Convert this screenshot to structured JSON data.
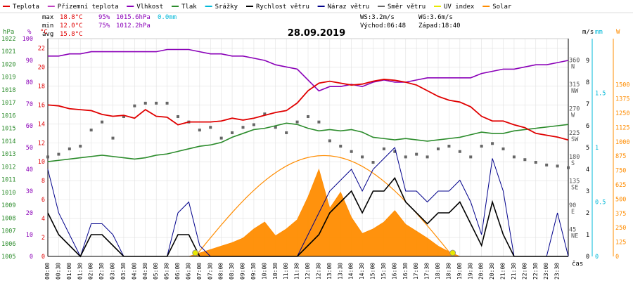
{
  "header": {
    "legend": [
      {
        "label": "Teplota",
        "color": "#e00000",
        "kind": "line"
      },
      {
        "label": "Přízemní teplota",
        "color": "#c040c0",
        "kind": "line"
      },
      {
        "label": "Vlhkost",
        "color": "#8a00b8",
        "kind": "line"
      },
      {
        "label": "Tlak",
        "color": "#2c8c2c",
        "kind": "line"
      },
      {
        "label": "Srážky",
        "color": "#00b8d8",
        "kind": "line"
      },
      {
        "label": "Rychlost větru",
        "color": "#000000",
        "kind": "line"
      },
      {
        "label": "Náraz větru",
        "color": "#00008b",
        "kind": "line"
      },
      {
        "label": "Směr větru",
        "color": "#666666",
        "kind": "line"
      },
      {
        "label": "UV index",
        "color": "#e8e800",
        "kind": "line"
      },
      {
        "label": "Solar",
        "color": "#ff8c00",
        "kind": "line"
      }
    ]
  },
  "stats": {
    "max": {
      "label": "max",
      "temp": "18.8°C",
      "hum": "95%",
      "press": "1015.6hPa",
      "rain": "0.0mm"
    },
    "min": {
      "label": "min",
      "temp": "12.0°C",
      "hum": "75%",
      "press": "1012.2hPa"
    },
    "avg": {
      "label": "avg",
      "temp": "15.8°C"
    },
    "wind": {
      "ws": "WS:3.2m/s",
      "wg": "WG:3.6m/s",
      "sunrise": "Východ:06:48",
      "sunset": "Západ:18:40"
    }
  },
  "colors": {
    "temp": "#e00000",
    "hum": "#8a00b8",
    "press": "#2c8c2c",
    "rain": "#00b8d8",
    "wind": "#000000",
    "gust": "#00008b",
    "dir": "#666666",
    "uv": "#e8e800",
    "solar": "#ff8c00",
    "grid": "#e0e0e0",
    "axis": "#000000"
  },
  "chart_data": {
    "type": "line",
    "title": "28.09.2019",
    "xlabel": "čas",
    "x_ticks": [
      "00:00",
      "00:30",
      "01:00",
      "01:30",
      "02:00",
      "02:30",
      "03:00",
      "03:30",
      "04:00",
      "04:30",
      "05:00",
      "05:30",
      "06:00",
      "06:30",
      "07:00",
      "07:30",
      "08:00",
      "08:30",
      "09:00",
      "09:30",
      "10:00",
      "10:30",
      "11:00",
      "11:30",
      "12:00",
      "12:30",
      "13:00",
      "13:30",
      "14:00",
      "14:30",
      "15:00",
      "15:30",
      "16:00",
      "16:30",
      "17:00",
      "17:30",
      "18:00",
      "18:30",
      "19:00",
      "19:30",
      "20:00",
      "20:30",
      "21:00",
      "21:30",
      "22:00",
      "22:30",
      "23:00",
      "23:30"
    ],
    "axes": {
      "hpa": {
        "unit": "hPa",
        "range": [
          1005,
          1022
        ],
        "ticks": [
          1005,
          1006,
          1007,
          1008,
          1009,
          1010,
          1011,
          1012,
          1013,
          1014,
          1015,
          1016,
          1017,
          1018,
          1019,
          1020,
          1021,
          1022
        ]
      },
      "pct": {
        "unit": "%",
        "range": [
          0,
          100
        ],
        "ticks": [
          0,
          10,
          20,
          30,
          40,
          50,
          60,
          70,
          80,
          90,
          100
        ]
      },
      "degc": {
        "unit": "°C",
        "range": [
          0,
          23
        ],
        "ticks": [
          0,
          2,
          4,
          6,
          8,
          10,
          12,
          14,
          16,
          18,
          20,
          22
        ]
      },
      "dir": {
        "range": [
          0,
          405
        ],
        "ticks": [
          "45 NE",
          "90 E",
          "135 SE",
          "180 S",
          "225 SW",
          "270 W",
          "315 NW",
          "360 N"
        ]
      },
      "ms": {
        "unit": "m/s",
        "range": [
          0,
          10
        ],
        "ticks": [
          0,
          1,
          2,
          3,
          4,
          5,
          6,
          7,
          8,
          9
        ]
      },
      "mm": {
        "unit": "mm",
        "range": [
          0,
          2
        ],
        "ticks": [
          "0",
          "0.5",
          "1",
          "1.5"
        ]
      },
      "wm2": {
        "unit": "W",
        "range": [
          0,
          1900
        ],
        "ticks": [
          0,
          125,
          250,
          375,
          500,
          625,
          750,
          875,
          1000,
          1125,
          1250,
          1375,
          1500
        ]
      }
    },
    "series": [
      {
        "name": "Teplota",
        "unit": "°C",
        "x": [
          0,
          0.5,
          1,
          1.5,
          2,
          2.5,
          3,
          3.5,
          4,
          4.5,
          5,
          5.5,
          6,
          6.5,
          7,
          7.5,
          8,
          8.5,
          9,
          9.5,
          10,
          10.5,
          11,
          11.5,
          12,
          12.5,
          13,
          13.5,
          14,
          14.5,
          15,
          15.5,
          16,
          16.5,
          17,
          17.5,
          18,
          18.5,
          19,
          19.5,
          20,
          20.5,
          21,
          21.5,
          22,
          22.5,
          23,
          23.5,
          24
        ],
        "y": [
          16,
          15.9,
          15.6,
          15.5,
          15.4,
          15,
          14.8,
          14.9,
          14.6,
          15.5,
          14.8,
          14.7,
          13.9,
          14.2,
          14.2,
          14.2,
          14.3,
          14.6,
          14.4,
          14.6,
          14.9,
          15.2,
          15.4,
          16.2,
          17.5,
          18.3,
          18.5,
          18.3,
          18.1,
          18.2,
          18.5,
          18.7,
          18.6,
          18.4,
          18.1,
          17.5,
          16.9,
          16.5,
          16.3,
          15.8,
          14.8,
          14.3,
          14.3,
          13.9,
          13.6,
          13.0,
          12.8,
          12.6,
          12.3
        ]
      },
      {
        "name": "Vlhkost",
        "unit": "%",
        "x": [
          0,
          0.5,
          1,
          1.5,
          2,
          2.5,
          3,
          3.5,
          4,
          4.5,
          5,
          5.5,
          6,
          6.5,
          7,
          7.5,
          8,
          8.5,
          9,
          9.5,
          10,
          10.5,
          11,
          11.5,
          12,
          12.5,
          13,
          13.5,
          14,
          14.5,
          15,
          15.5,
          16,
          16.5,
          17,
          17.5,
          18,
          18.5,
          19,
          19.5,
          20,
          20.5,
          21,
          21.5,
          22,
          22.5,
          23,
          23.5,
          24
        ],
        "y": [
          92,
          92,
          93,
          93,
          94,
          94,
          94,
          94,
          94,
          94,
          94,
          95,
          95,
          95,
          94,
          93,
          93,
          92,
          92,
          91,
          90,
          88,
          87,
          86,
          81,
          76,
          78,
          78,
          79,
          78,
          80,
          81,
          80,
          80,
          81,
          82,
          82,
          82,
          82,
          82,
          84,
          85,
          86,
          86,
          87,
          88,
          88,
          89,
          90
        ]
      },
      {
        "name": "Tlak",
        "unit": "hPa",
        "x": [
          0,
          0.5,
          1,
          1.5,
          2,
          2.5,
          3,
          3.5,
          4,
          4.5,
          5,
          5.5,
          6,
          6.5,
          7,
          7.5,
          8,
          8.5,
          9,
          9.5,
          10,
          10.5,
          11,
          11.5,
          12,
          12.5,
          13,
          13.5,
          14,
          14.5,
          15,
          15.5,
          16,
          16.5,
          17,
          17.5,
          18,
          18.5,
          19,
          19.5,
          20,
          20.5,
          21,
          21.5,
          22,
          22.5,
          23,
          23.5,
          24
        ],
        "y": [
          1012.4,
          1012.5,
          1012.6,
          1012.7,
          1012.8,
          1012.9,
          1012.8,
          1012.7,
          1012.6,
          1012.7,
          1012.9,
          1013.0,
          1013.2,
          1013.4,
          1013.6,
          1013.7,
          1013.9,
          1014.3,
          1014.6,
          1014.9,
          1015.0,
          1015.2,
          1015.4,
          1015.3,
          1015.0,
          1014.8,
          1014.9,
          1014.8,
          1014.9,
          1014.7,
          1014.3,
          1014.2,
          1014.1,
          1014.2,
          1014.1,
          1014.0,
          1014.1,
          1014.2,
          1014.3,
          1014.5,
          1014.7,
          1014.6,
          1014.6,
          1014.8,
          1014.9,
          1015.0,
          1015.1,
          1015.2,
          1015.3
        ]
      },
      {
        "name": "Rychlost větru",
        "unit": "m/s",
        "x": [
          0,
          0.5,
          1,
          1.5,
          2,
          2.5,
          3,
          3.5,
          4,
          4.5,
          5,
          5.5,
          6,
          6.5,
          7,
          7.5,
          8,
          8.5,
          9,
          9.5,
          10,
          10.5,
          11,
          11.5,
          12,
          12.5,
          13,
          13.5,
          14,
          14.5,
          15,
          15.5,
          16,
          16.5,
          17,
          17.5,
          18,
          18.5,
          19,
          19.5,
          20,
          20.5,
          21,
          21.5,
          22,
          22.5,
          23,
          23.5,
          24
        ],
        "y": [
          2,
          1,
          0.5,
          0,
          1,
          1,
          0.5,
          0,
          0,
          0,
          0,
          0,
          1,
          1,
          0,
          0,
          0,
          0,
          0,
          0,
          0,
          0,
          0,
          0,
          0.5,
          1,
          2,
          2.5,
          3,
          2,
          3,
          3,
          3.6,
          2.5,
          2,
          1.5,
          2,
          2,
          2.5,
          1.5,
          0.5,
          2.5,
          1,
          0,
          0,
          0,
          0,
          0,
          0
        ]
      },
      {
        "name": "Náraz větru",
        "unit": "m/s",
        "x": [
          0,
          0.5,
          1,
          1.5,
          2,
          2.5,
          3,
          3.5,
          4,
          4.5,
          5,
          5.5,
          6,
          6.5,
          7,
          7.5,
          8,
          8.5,
          9,
          9.5,
          10,
          10.5,
          11,
          11.5,
          12,
          12.5,
          13,
          13.5,
          14,
          14.5,
          15,
          15.5,
          16,
          16.5,
          17,
          17.5,
          18,
          18.5,
          19,
          19.5,
          20,
          20.5,
          21,
          21.5,
          22,
          22.5,
          23,
          23.5,
          24
        ],
        "y": [
          4,
          2,
          1,
          0,
          1.5,
          1.5,
          1,
          0,
          0,
          0,
          0,
          0,
          2,
          2.5,
          0.5,
          0,
          0,
          0,
          0,
          0,
          0,
          0,
          0,
          0,
          1,
          2,
          3,
          3.5,
          4,
          3,
          4,
          4.5,
          5,
          3,
          3,
          2.5,
          3,
          3,
          3.5,
          2.5,
          1,
          4.5,
          3,
          0,
          0,
          0,
          0,
          2,
          0
        ]
      },
      {
        "name": "Solar",
        "unit": "W",
        "x": [
          6.5,
          7,
          7.5,
          8,
          8.5,
          9,
          9.5,
          10,
          10.5,
          11,
          11.5,
          12,
          12.5,
          13,
          13.5,
          14,
          14.5,
          15,
          15.5,
          16,
          16.5,
          17,
          17.5,
          18,
          18.5,
          19
        ],
        "y": [
          0,
          30,
          60,
          90,
          120,
          160,
          240,
          300,
          180,
          240,
          320,
          520,
          760,
          420,
          560,
          340,
          200,
          240,
          300,
          400,
          280,
          220,
          160,
          90,
          40,
          0
        ]
      },
      {
        "name": "Směr větru",
        "unit": "°",
        "x": [
          0,
          0.5,
          1,
          1.5,
          2,
          2.5,
          3,
          3.5,
          4,
          4.5,
          5,
          5.5,
          6,
          6.5,
          7,
          7.5,
          8,
          8.5,
          9,
          9.5,
          10,
          10.5,
          11,
          11.5,
          12,
          12.5,
          13,
          13.5,
          14,
          14.5,
          15,
          15.5,
          16,
          16.5,
          17,
          17.5,
          18,
          18.5,
          19,
          19.5,
          20,
          20.5,
          21,
          21.5,
          22,
          22.5,
          23,
          23.5,
          24
        ],
        "y": [
          185,
          190,
          200,
          205,
          235,
          250,
          220,
          260,
          280,
          285,
          285,
          285,
          260,
          250,
          235,
          240,
          220,
          230,
          240,
          245,
          265,
          240,
          230,
          250,
          260,
          250,
          215,
          205,
          195,
          185,
          175,
          200,
          195,
          185,
          190,
          185,
          200,
          205,
          195,
          185,
          205,
          210,
          200,
          185,
          180,
          175,
          170,
          168,
          165
        ]
      }
    ],
    "sunrise_x": 6.8,
    "sunset_x": 18.67
  }
}
